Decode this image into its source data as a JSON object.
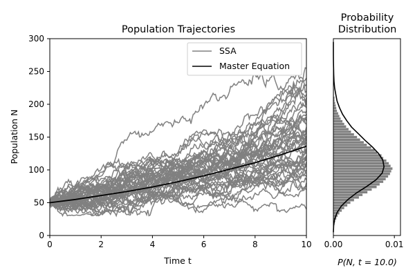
{
  "chart_data": [
    {
      "type": "line",
      "title": "Population Trajectories",
      "xlabel": "Time t",
      "ylabel": "Population N",
      "xlim": [
        0,
        10
      ],
      "ylim": [
        0,
        300
      ],
      "xticks": [
        0,
        2,
        4,
        6,
        8,
        10
      ],
      "yticks": [
        0,
        50,
        100,
        150,
        200,
        250,
        300
      ],
      "grid": false,
      "legend": {
        "position": "top-right",
        "entries": [
          {
            "label": "SSA",
            "color": "#808080"
          },
          {
            "label": "Master Equation",
            "color": "#000000"
          }
        ]
      },
      "series": [
        {
          "name": "SSA",
          "color": "#808080",
          "description_count": 60,
          "start": 50,
          "final_values_t10": [
            40,
            70,
            75,
            80,
            85,
            90,
            95,
            100,
            105,
            108,
            110,
            112,
            115,
            118,
            120,
            122,
            125,
            128,
            130,
            132,
            135,
            138,
            140,
            142,
            145,
            148,
            150,
            152,
            155,
            158,
            160,
            165,
            170,
            175,
            180,
            185,
            190,
            195,
            200,
            205,
            210,
            215,
            220,
            230,
            240,
            255
          ]
        },
        {
          "name": "Master Equation",
          "color": "#000000",
          "x": [
            0,
            1,
            2,
            3,
            4,
            5,
            6,
            7,
            8,
            9,
            10
          ],
          "y": [
            50,
            55,
            61,
            67,
            74,
            82,
            91,
            101,
            111,
            123,
            136
          ]
        }
      ]
    },
    {
      "type": "bar",
      "orientation": "horizontal",
      "title": "Probability\nDistribution",
      "title_lines": [
        "Probability",
        "Distribution"
      ],
      "xlabel": "P(N, t = 10.0)",
      "xlim": [
        0,
        0.011
      ],
      "xticks": [
        0.0,
        0.01
      ],
      "xtick_labels": [
        "0.00",
        "0.01"
      ],
      "ylim": [
        0,
        300
      ],
      "histogram": {
        "color": "#808080",
        "bins_N": [
          10,
          14,
          18,
          22,
          26,
          30,
          34,
          38,
          42,
          46,
          50,
          54,
          58,
          62,
          66,
          70,
          74,
          78,
          82,
          86,
          90,
          94,
          98,
          102,
          106,
          110,
          114,
          118,
          122,
          126,
          130,
          134,
          138,
          142,
          146,
          150,
          154,
          158,
          162,
          166,
          170,
          174,
          178,
          182,
          186,
          190,
          194,
          198,
          202,
          206,
          210,
          214,
          218,
          222,
          226,
          230,
          234,
          238,
          242,
          246,
          250,
          254,
          258,
          262,
          266,
          270,
          274,
          278,
          282,
          286,
          290,
          294,
          298
        ],
        "P": [
          0.0,
          0.0001,
          0.0002,
          0.0003,
          0.0005,
          0.0007,
          0.001,
          0.0014,
          0.0018,
          0.0023,
          0.0028,
          0.0034,
          0.0042,
          0.0048,
          0.0056,
          0.0063,
          0.0071,
          0.0076,
          0.0082,
          0.0086,
          0.009,
          0.0093,
          0.0095,
          0.0097,
          0.0094,
          0.0091,
          0.0087,
          0.0082,
          0.0079,
          0.0072,
          0.0068,
          0.0062,
          0.0055,
          0.005,
          0.0044,
          0.0039,
          0.0034,
          0.0029,
          0.0025,
          0.0021,
          0.0018,
          0.0015,
          0.0012,
          0.001,
          0.0008,
          0.0006,
          0.0005,
          0.0004,
          0.0003,
          0.0002,
          0.0002,
          0.0001,
          0.0001,
          0.0001,
          0.0,
          0.0,
          0.0,
          0.0,
          0.0,
          0.0,
          0.0,
          0.0,
          0.0,
          0.0,
          0.0,
          0.0,
          0.0,
          0.0,
          0.0,
          0.0,
          0.0,
          0.0,
          0.0
        ]
      },
      "master_equation": {
        "color": "#000000",
        "N": [
          5,
          15,
          25,
          35,
          45,
          55,
          65,
          75,
          85,
          95,
          105,
          115,
          125,
          135,
          145,
          155,
          165,
          175,
          185,
          195,
          205,
          215,
          225,
          235,
          245,
          255,
          265,
          275,
          285,
          295
        ],
        "P": [
          0.0,
          5e-05,
          0.0002,
          0.0006,
          0.0013,
          0.0024,
          0.0038,
          0.0055,
          0.007,
          0.008,
          0.0083,
          0.0081,
          0.0074,
          0.0064,
          0.0052,
          0.0041,
          0.003,
          0.0022,
          0.0015,
          0.001,
          0.0006,
          0.0004,
          0.0002,
          0.0001,
          6e-05,
          3e-05,
          1e-05,
          0.0,
          0.0,
          0.0
        ]
      }
    }
  ]
}
